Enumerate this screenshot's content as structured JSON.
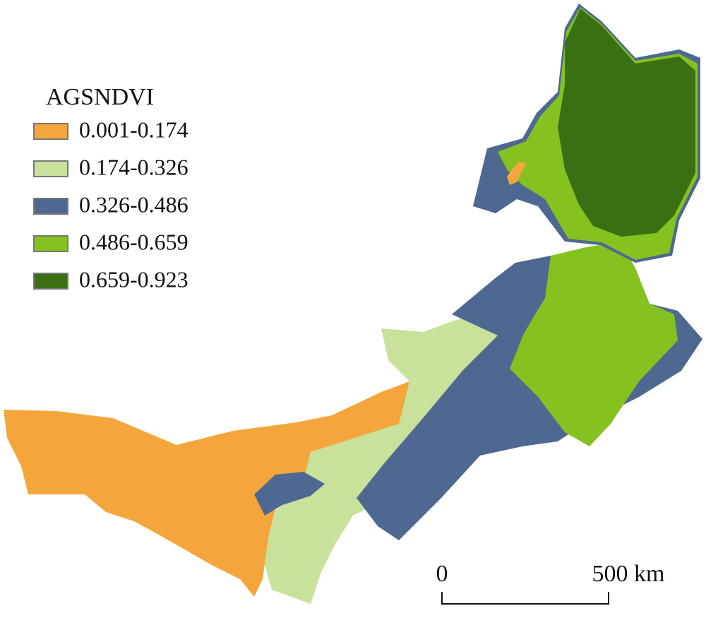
{
  "legend": {
    "title": "AGSNDVI",
    "items": [
      {
        "label": "0.001-0.174",
        "color": "#f4a63c"
      },
      {
        "label": "0.174-0.326",
        "color": "#c8e29c"
      },
      {
        "label": "0.326-0.486",
        "color": "#4f6892"
      },
      {
        "label": "0.486-0.659",
        "color": "#86c21f"
      },
      {
        "label": "0.659-0.923",
        "color": "#3b6f14"
      }
    ]
  },
  "scale_bar": {
    "start_label": "0",
    "end_label": "500 km"
  }
}
